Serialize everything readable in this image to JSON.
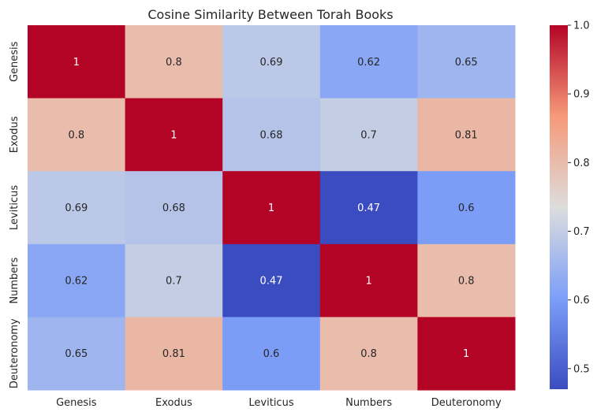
{
  "chart_data": {
    "type": "heatmap",
    "title": "Cosine Similarity Between Torah Books",
    "x_categories": [
      "Genesis",
      "Exodus",
      "Leviticus",
      "Numbers",
      "Deuteronomy"
    ],
    "y_categories": [
      "Genesis",
      "Exodus",
      "Leviticus",
      "Numbers",
      "Deuteronomy"
    ],
    "values": [
      [
        1,
        0.8,
        0.69,
        0.62,
        0.65
      ],
      [
        0.8,
        1,
        0.68,
        0.7,
        0.81
      ],
      [
        0.69,
        0.68,
        1,
        0.47,
        0.6
      ],
      [
        0.62,
        0.7,
        0.47,
        1,
        0.8
      ],
      [
        0.65,
        0.81,
        0.6,
        0.8,
        1
      ]
    ],
    "cell_labels": [
      [
        "1",
        "0.8",
        "0.69",
        "0.62",
        "0.65"
      ],
      [
        "0.8",
        "1",
        "0.68",
        "0.7",
        "0.81"
      ],
      [
        "0.69",
        "0.68",
        "1",
        "0.47",
        "0.6"
      ],
      [
        "0.62",
        "0.7",
        "0.47",
        "1",
        "0.8"
      ],
      [
        "0.65",
        "0.81",
        "0.6",
        "0.8",
        "1"
      ]
    ],
    "colormap": "coolwarm",
    "colorbar": {
      "range": [
        0.47,
        1.0
      ],
      "ticks": [
        0.5,
        0.6,
        0.7,
        0.8,
        0.9,
        1.0
      ],
      "tick_labels": [
        "0.5",
        "0.6",
        "0.7",
        "0.8",
        "0.9",
        "1.0"
      ]
    }
  }
}
